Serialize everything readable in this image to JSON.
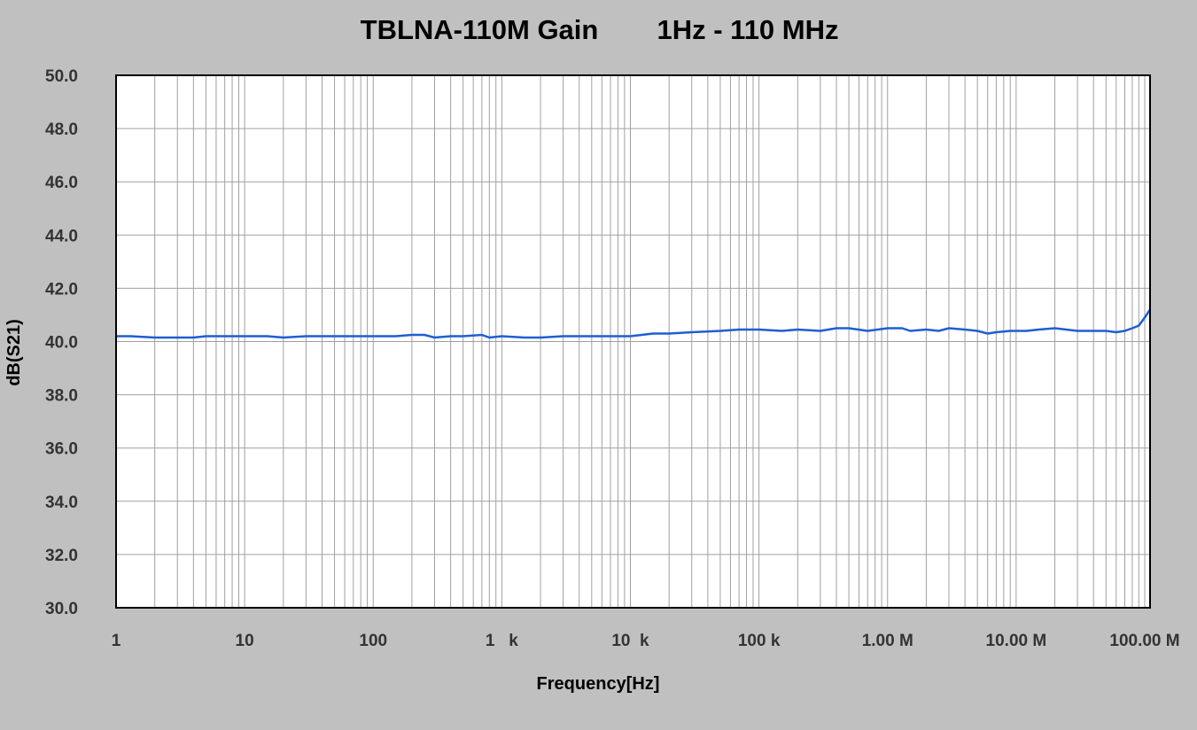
{
  "chart_data": {
    "type": "line",
    "title": "TBLNA-110M Gain",
    "subtitle": "1Hz - 110 MHz",
    "xlabel": "Frequency[Hz]",
    "ylabel": "dB(S21)",
    "x_scale": "log",
    "xlim": [
      1,
      110000000
    ],
    "ylim": [
      30,
      50
    ],
    "grid": true,
    "x_ticks": [
      {
        "value": 1,
        "label": "1"
      },
      {
        "value": 10,
        "label": "10"
      },
      {
        "value": 100,
        "label": "100"
      },
      {
        "value": 1000,
        "label": "1   k"
      },
      {
        "value": 10000,
        "label": "10  k"
      },
      {
        "value": 100000,
        "label": "100 k"
      },
      {
        "value": 1000000,
        "label": "1.00 M"
      },
      {
        "value": 10000000,
        "label": "10.00 M"
      },
      {
        "value": 100000000,
        "label": "100.00 M"
      }
    ],
    "y_ticks": [
      {
        "value": 30,
        "label": "30.0"
      },
      {
        "value": 32,
        "label": "32.0"
      },
      {
        "value": 34,
        "label": "34.0"
      },
      {
        "value": 36,
        "label": "36.0"
      },
      {
        "value": 38,
        "label": "38.0"
      },
      {
        "value": 40,
        "label": "40.0"
      },
      {
        "value": 42,
        "label": "42.0"
      },
      {
        "value": 44,
        "label": "44.0"
      },
      {
        "value": 46,
        "label": "46.0"
      },
      {
        "value": 48,
        "label": "48.0"
      },
      {
        "value": 50,
        "label": "50.0"
      }
    ],
    "colors": {
      "background": "#c0c0c0",
      "plot_area": "#ffffff",
      "grid": "#a0a0a0",
      "axis": "#000000",
      "line": "#1f5fd0"
    },
    "series": [
      {
        "x": [
          1,
          1.3,
          2,
          3,
          4,
          5,
          7,
          10,
          15,
          20,
          30,
          50,
          70,
          100,
          150,
          200,
          250,
          300,
          400,
          500,
          700,
          800,
          1000,
          1500,
          2000,
          3000,
          5000,
          7000,
          10000,
          15000,
          20000,
          30000,
          50000,
          70000,
          100000,
          150000,
          200000,
          300000,
          400000,
          500000,
          700000,
          1000000,
          1300000,
          1500000,
          2000000,
          2500000,
          3000000,
          4000000,
          5000000,
          6000000,
          7000000,
          9000000,
          10000000,
          12000000,
          15000000,
          20000000,
          30000000,
          40000000,
          50000000,
          60000000,
          70000000,
          80000000,
          90000000,
          100000000,
          110000000
        ],
        "y": [
          40.2,
          40.2,
          40.15,
          40.15,
          40.15,
          40.2,
          40.2,
          40.2,
          40.2,
          40.15,
          40.2,
          40.2,
          40.2,
          40.2,
          40.2,
          40.25,
          40.25,
          40.15,
          40.2,
          40.2,
          40.25,
          40.15,
          40.2,
          40.15,
          40.15,
          40.2,
          40.2,
          40.2,
          40.2,
          40.3,
          40.3,
          40.35,
          40.4,
          40.45,
          40.45,
          40.4,
          40.45,
          40.4,
          40.5,
          40.5,
          40.4,
          40.5,
          40.5,
          40.4,
          40.45,
          40.4,
          40.5,
          40.45,
          40.4,
          40.3,
          40.35,
          40.4,
          40.4,
          40.4,
          40.45,
          40.5,
          40.4,
          40.4,
          40.4,
          40.35,
          40.4,
          40.5,
          40.6,
          40.9,
          41.2
        ]
      }
    ]
  }
}
